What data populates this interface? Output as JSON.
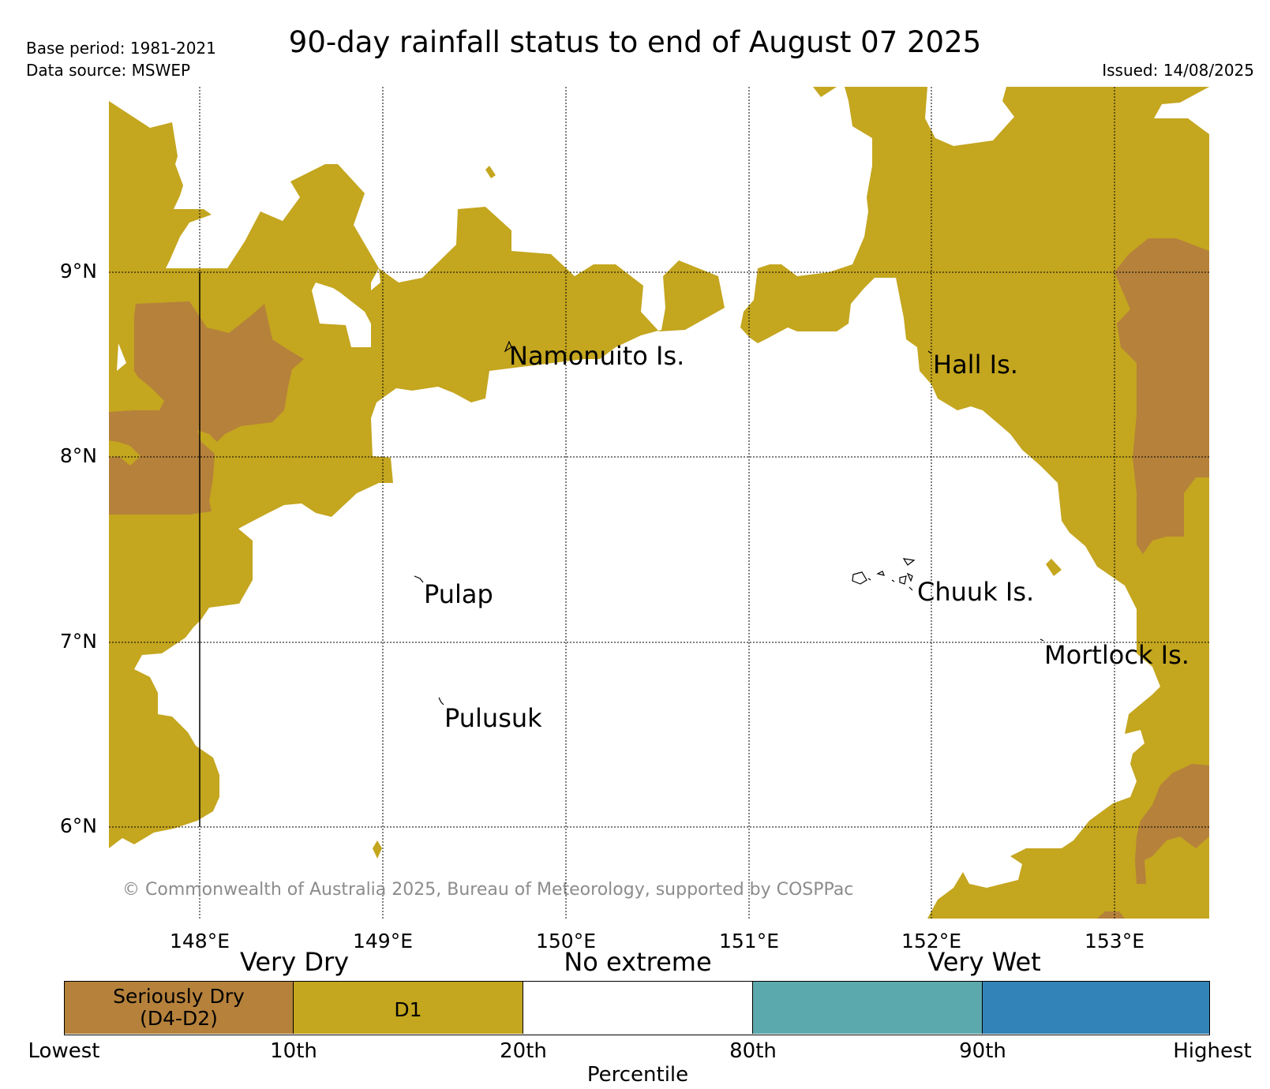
{
  "title": "90-day rainfall status to end of August 07 2025",
  "base_period": "Base period: 1981-2021",
  "data_source": "Data source: MSWEP",
  "issued": "Issued: 14/08/2025",
  "credit": "© Commonwealth of Australia 2025, Bureau of Meteorology, supported by COSPPac",
  "map": {
    "lon_range": [
      147.5,
      153.5
    ],
    "lat_range": [
      5.5,
      10.0
    ],
    "lon_ticks": [
      148,
      149,
      150,
      151,
      152,
      153
    ],
    "lat_ticks": [
      9,
      8,
      7,
      6
    ],
    "lon_tick_labels": [
      "148°E",
      "149°E",
      "150°E",
      "151°E",
      "152°E",
      "153°E"
    ],
    "lat_tick_labels": [
      "9°N",
      "8°N",
      "7°N",
      "6°N"
    ],
    "gridlines": true,
    "places": [
      {
        "name": "Namonuito Is.",
        "lon": 149.65,
        "lat": 8.62
      },
      {
        "name": "Hall Is.",
        "lon": 152.0,
        "lat": 8.55
      },
      {
        "name": "Pulap",
        "lon": 149.3,
        "lat": 7.35
      },
      {
        "name": "Chuuk Is.",
        "lon": 151.78,
        "lat": 7.38
      },
      {
        "name": "Mortlock Is.",
        "lon": 152.6,
        "lat": 7.0
      },
      {
        "name": "Pulusuk",
        "lon": 149.4,
        "lat": 6.68
      }
    ],
    "colors": {
      "seriously_dry": "#b5813b",
      "d1": "#c4a61f",
      "no_extreme": "#ffffff",
      "wet": "#5ca9ad",
      "very_wet": "#3283b7"
    }
  },
  "legend": {
    "band_titles": {
      "very_dry": "Very Dry",
      "no_extreme": "No extreme",
      "very_wet": "Very Wet"
    },
    "categories": [
      {
        "label": "Seriously Dry\n(D4-D2)",
        "color": "#b5813b"
      },
      {
        "label": "D1",
        "color": "#c4a61f"
      },
      {
        "label": "",
        "color": "#ffffff"
      },
      {
        "label": "",
        "color": "#5ca9ad"
      },
      {
        "label": "",
        "color": "#3283b7"
      }
    ],
    "percentile_labels": [
      "Lowest",
      "10th",
      "20th",
      "80th",
      "90th",
      "Highest"
    ],
    "axis_label": "Percentile"
  }
}
